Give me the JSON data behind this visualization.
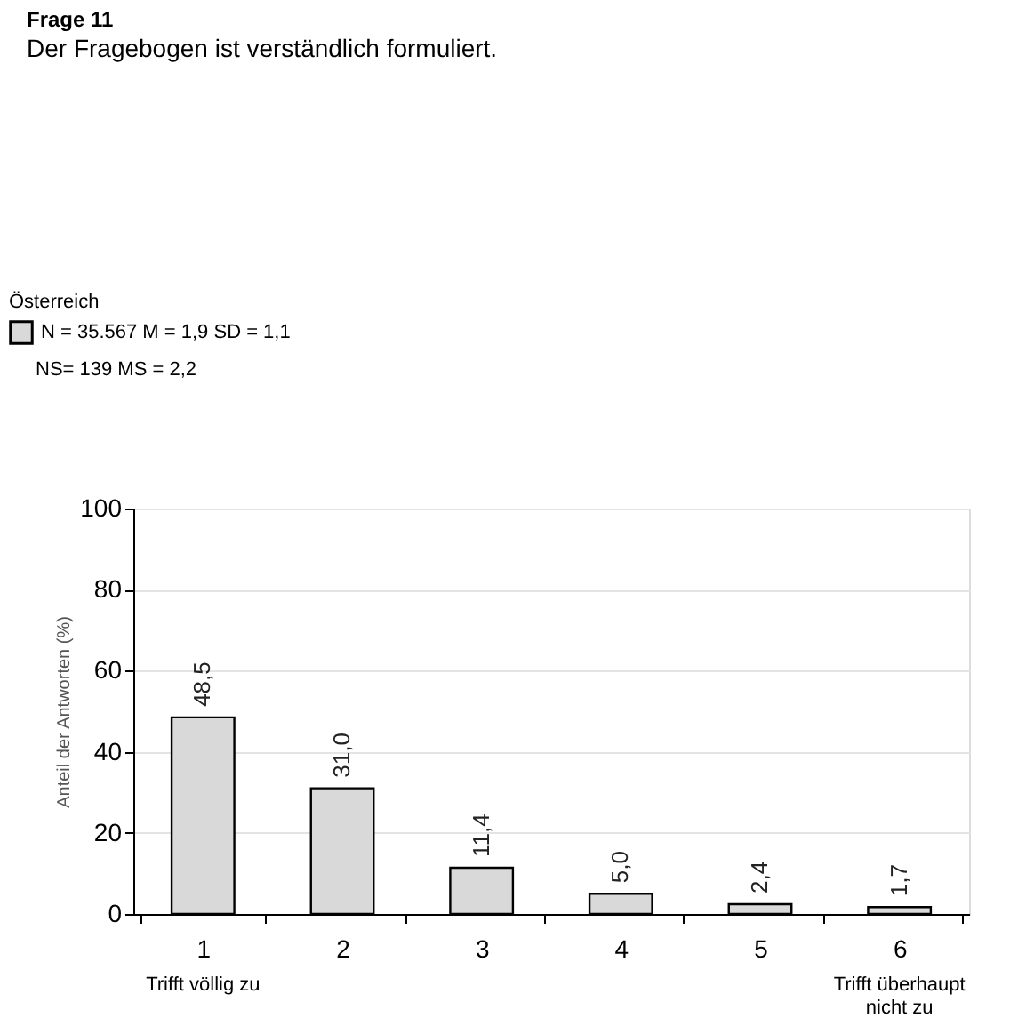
{
  "chart_data": {
    "type": "bar",
    "title": "Frage 11",
    "subtitle": "Der Fragebogen ist verständlich formuliert.",
    "ylabel": "Anteil der Antworten (%)",
    "legend_title": "Österreich",
    "categories": [
      "1",
      "2",
      "3",
      "4",
      "5",
      "6"
    ],
    "series": [
      {
        "name": "N = 35.567 M = 1,9 SD = 1,1",
        "color": "#d9d9d9",
        "values": [
          48.5,
          31.0,
          11.4,
          5.0,
          2.4,
          1.7
        ],
        "value_labels": [
          "48,5",
          "31,0",
          "11,4",
          "5,0",
          "2,4",
          "1,7"
        ]
      }
    ],
    "ylim": [
      0,
      100
    ],
    "yticks": [
      0,
      20,
      40,
      60,
      80,
      100
    ],
    "grid": "y",
    "legend": "top left",
    "annotations": [
      "NS= 139  MS = 2,2",
      "Trifft völlig zu",
      "Trifft überhaupt nicht zu"
    ]
  }
}
